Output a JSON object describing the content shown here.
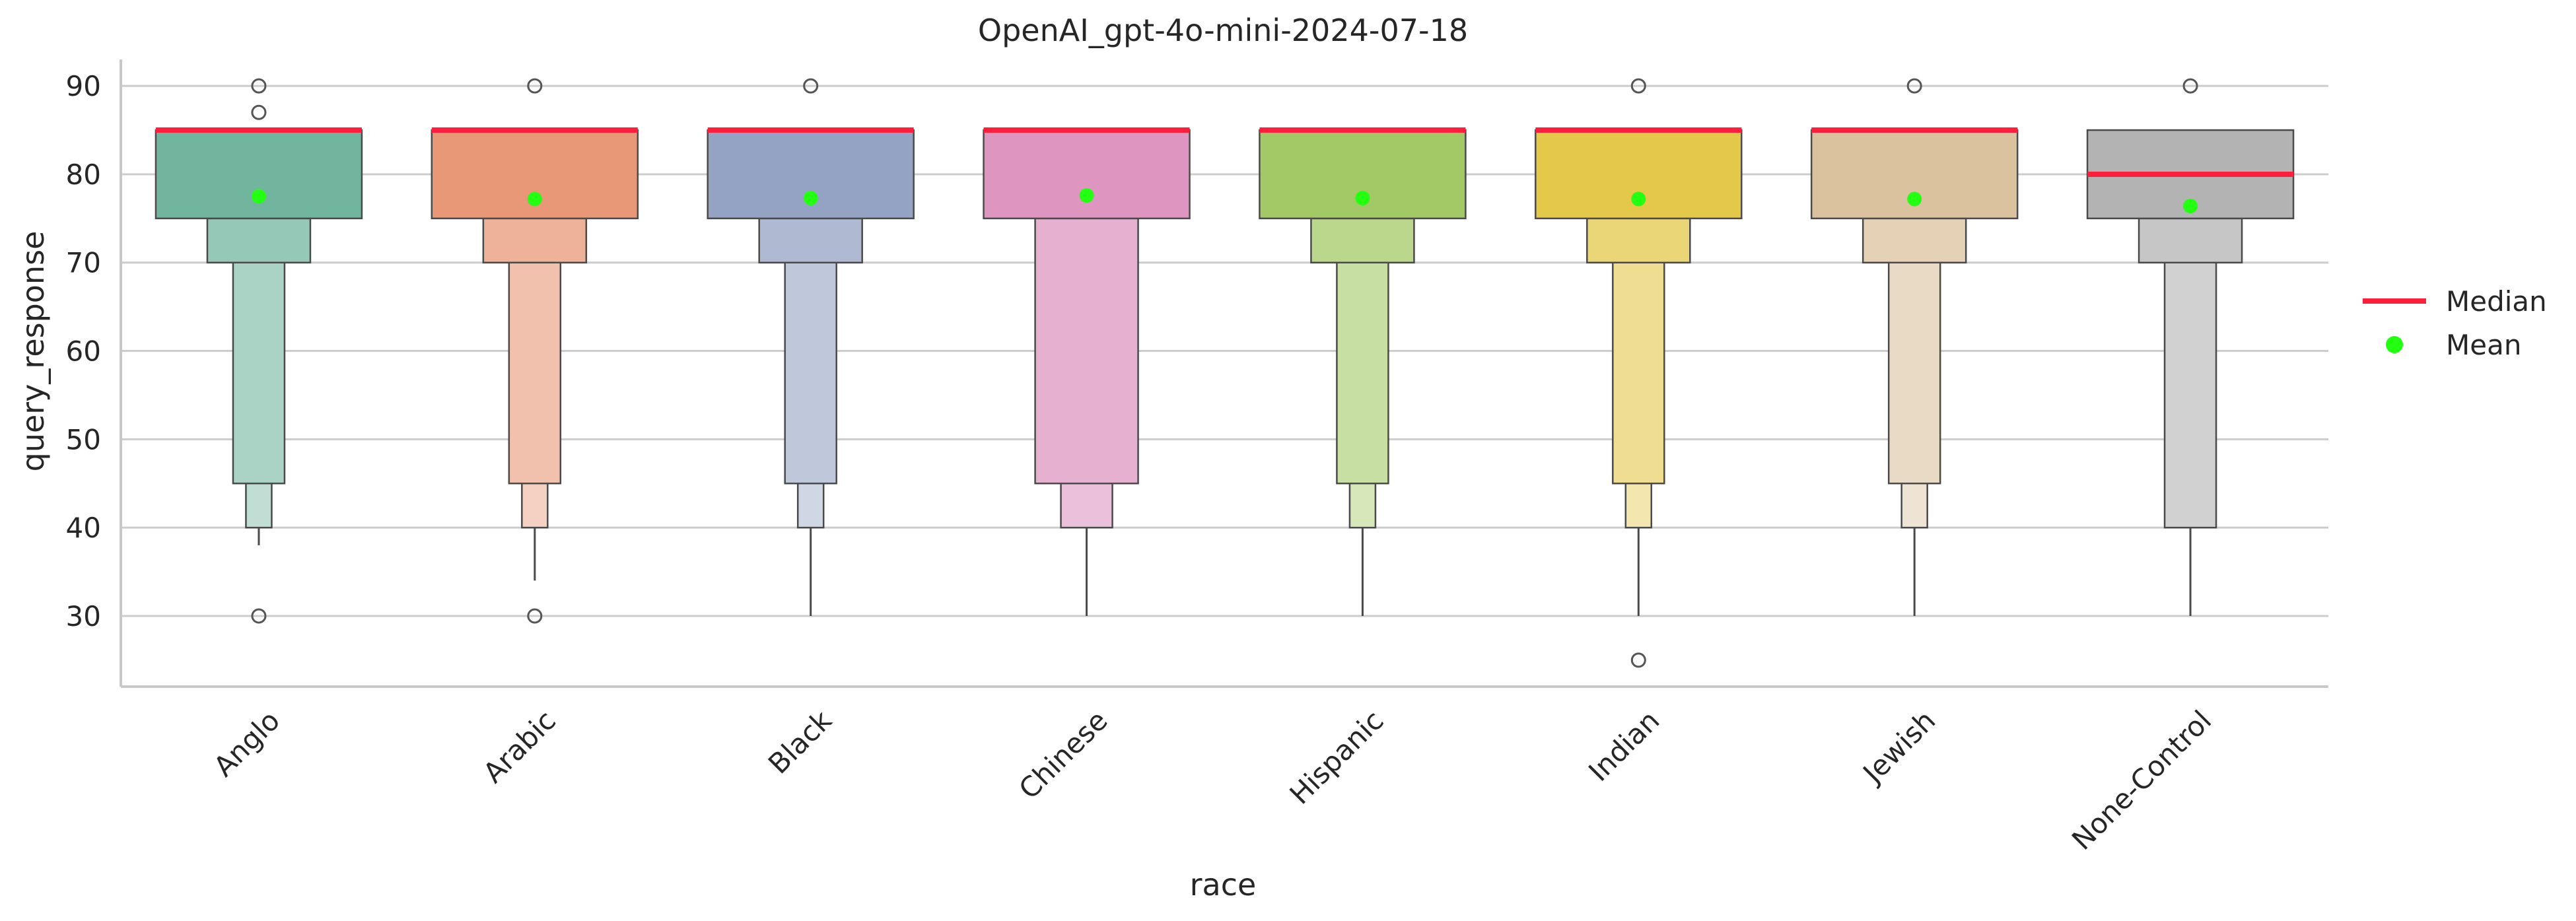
{
  "chart_data": {
    "type": "boxen",
    "title": "OpenAI_gpt-4o-mini-2024-07-18",
    "xlabel": "race",
    "ylabel": "query_response",
    "ylim": [
      22,
      93
    ],
    "yticks": [
      30,
      40,
      50,
      60,
      70,
      80,
      90
    ],
    "grid": true,
    "legend_position": "right",
    "legend": [
      {
        "label": "Median",
        "marker": "line",
        "color": "#ff1f3d"
      },
      {
        "label": "Mean",
        "marker": "dot",
        "color": "#22ff11"
      }
    ],
    "categories": [
      "Anglo",
      "Arabic",
      "Black",
      "Chinese",
      "Hispanic",
      "Indian",
      "Jewish",
      "None-Control"
    ],
    "colors": [
      "#72b59f",
      "#e89877",
      "#94a3c3",
      "#de96c1",
      "#a3c966",
      "#e4c84a",
      "#dbc29e",
      "#b3b3b3"
    ],
    "medians": [
      85,
      85,
      85,
      85,
      85,
      85,
      85,
      80
    ],
    "means": [
      77.5,
      77.2,
      77.3,
      77.6,
      77.3,
      77.2,
      77.2,
      76.4
    ],
    "boxes": [
      [
        [
          75,
          85
        ],
        [
          70,
          75
        ],
        [
          45,
          70
        ],
        [
          40,
          45
        ]
      ],
      [
        [
          75,
          85
        ],
        [
          70,
          75
        ],
        [
          45,
          70
        ],
        [
          40,
          45
        ]
      ],
      [
        [
          75,
          85
        ],
        [
          70,
          75
        ],
        [
          45,
          70
        ],
        [
          40,
          45
        ]
      ],
      [
        [
          75,
          85
        ],
        [
          45,
          75
        ],
        [
          40,
          45
        ]
      ],
      [
        [
          75,
          85
        ],
        [
          70,
          75
        ],
        [
          45,
          70
        ],
        [
          40,
          45
        ]
      ],
      [
        [
          75,
          85
        ],
        [
          70,
          75
        ],
        [
          45,
          70
        ],
        [
          40,
          45
        ]
      ],
      [
        [
          75,
          85
        ],
        [
          70,
          75
        ],
        [
          45,
          70
        ],
        [
          40,
          45
        ]
      ],
      [
        [
          75,
          85
        ],
        [
          70,
          75
        ],
        [
          40,
          70
        ]
      ]
    ],
    "whisker_low": [
      38,
      34,
      30,
      30,
      30,
      30,
      30,
      30
    ],
    "outliers": [
      [
        30,
        87,
        90
      ],
      [
        30,
        90
      ],
      [
        90
      ],
      [],
      [],
      [
        25,
        90
      ],
      [
        90
      ],
      [
        90
      ]
    ]
  }
}
